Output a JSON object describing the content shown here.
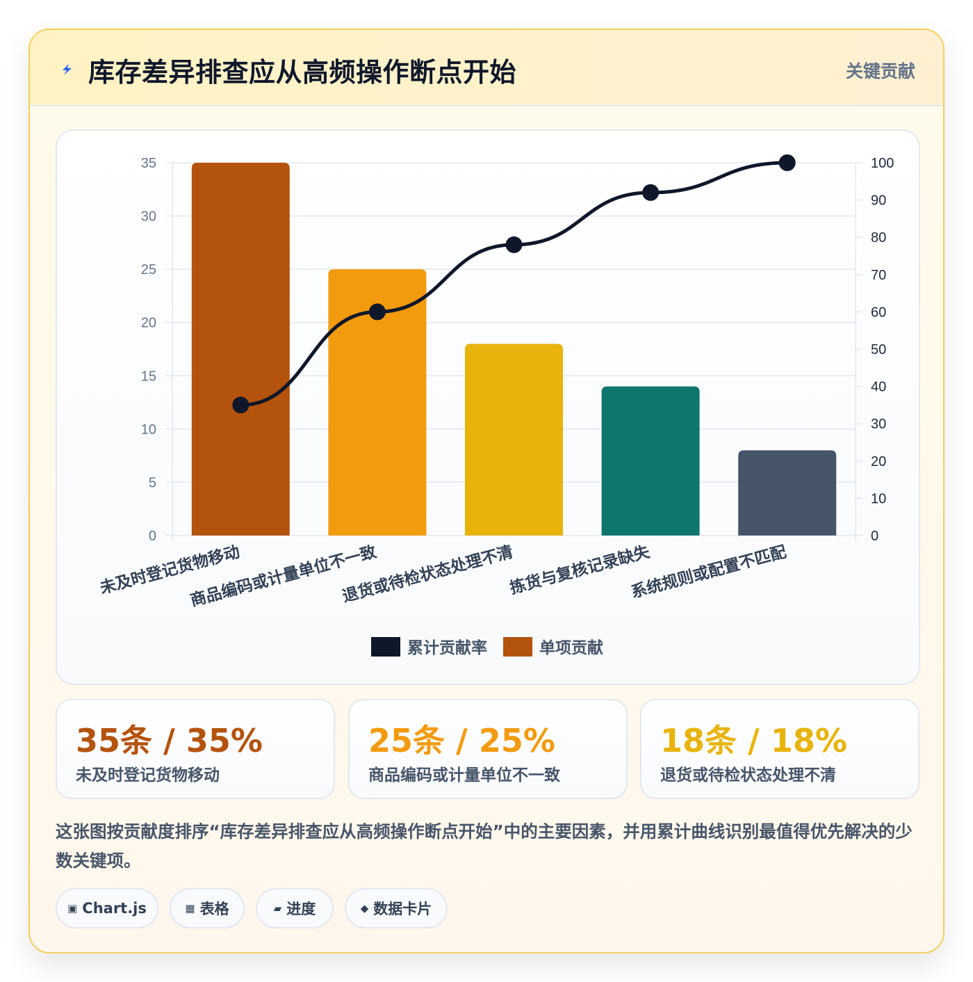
{
  "header": {
    "title": "库存差异排查应从高频操作断点开始",
    "tag": "关键贡献"
  },
  "chart_data": {
    "type": "bar",
    "categories": [
      "未及时登记货物移动",
      "商品编码或计量单位不一致",
      "退货或待检状态处理不清",
      "拣货与复核记录缺失",
      "系统规则或配置不匹配"
    ],
    "series": [
      {
        "name": "单项贡献",
        "type": "bar",
        "axis": "left",
        "values": [
          35,
          25,
          18,
          14,
          8
        ],
        "colors": [
          "#b4530d",
          "#f29b0f",
          "#e8b40c",
          "#0f766e",
          "#475569"
        ]
      },
      {
        "name": "累计贡献率",
        "type": "line",
        "axis": "right",
        "values": [
          35,
          60,
          78,
          92,
          100
        ],
        "color": "#0f172a"
      }
    ],
    "y_left": {
      "range": [
        0,
        35
      ],
      "ticks": [
        0,
        5,
        10,
        15,
        20,
        25,
        30,
        35
      ]
    },
    "y_right": {
      "range": [
        0,
        100
      ],
      "ticks": [
        0,
        10,
        20,
        30,
        40,
        50,
        60,
        70,
        80,
        90,
        100
      ]
    },
    "legend": {
      "position": "bottom",
      "items": [
        {
          "label": "累计贡献率",
          "color": "#0f172a"
        },
        {
          "label": "单项贡献",
          "color": "#b4530d"
        }
      ]
    },
    "grid": true
  },
  "stats": [
    {
      "value": "35条 / 35%",
      "label": "未及时登记货物移动",
      "color": "#b4530d"
    },
    {
      "value": "25条 / 25%",
      "label": "商品编码或计量单位不一致",
      "color": "#f29b0f"
    },
    {
      "value": "18条 / 18%",
      "label": "退货或待检状态处理不清",
      "color": "#e8b40c"
    }
  ],
  "description": "这张图按贡献度排序“库存差异排查应从高频操作断点开始”中的主要因素，并用累计曲线识别最值得优先解决的少数关键项。",
  "pills": [
    {
      "icon": "▣",
      "label": "Chart.js"
    },
    {
      "icon": "▦",
      "label": "表格"
    },
    {
      "icon": "▰",
      "label": "进度"
    },
    {
      "icon": "◆",
      "label": "数据卡片"
    }
  ],
  "icons": {
    "header": "lightning-icon",
    "header_color": "#2563eb"
  }
}
